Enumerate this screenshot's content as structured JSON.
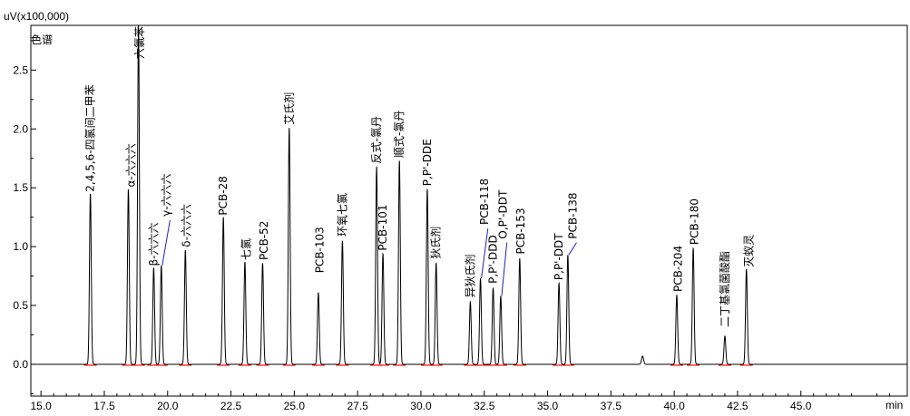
{
  "chart_data": {
    "type": "line",
    "y_unit": "uV(x100,000)",
    "x_unit": "min",
    "panel_label": "色谱",
    "xlim": [
      14.6,
      49.2
    ],
    "ylim": [
      -0.27,
      2.88
    ],
    "x_ticks": [
      15.0,
      17.5,
      20.0,
      22.5,
      25.0,
      27.5,
      30.0,
      32.5,
      35.0,
      37.5,
      40.0,
      42.5,
      45.0
    ],
    "x_tick_labels": [
      "15.0",
      "17.5",
      "20.0",
      "22.5",
      "25.0",
      "27.5",
      "30.0",
      "32.5",
      "35.0",
      "37.5",
      "40.0",
      "42.5",
      "45.0"
    ],
    "y_ticks": [
      0.0,
      0.5,
      1.0,
      1.5,
      2.0,
      2.5
    ],
    "y_tick_labels": [
      "0.0",
      "0.5",
      "1.0",
      "1.5",
      "2.0",
      "2.5"
    ],
    "line_color": "#000000",
    "baseline_color": "#ff0000",
    "leader_color": "#2020c0",
    "peaks": [
      {
        "x": 16.95,
        "h": 1.45,
        "w": 0.035,
        "label": "2,4,5,6-四氯间二甲苯",
        "lx": 16.95,
        "ly": 1.45
      },
      {
        "x": 18.45,
        "h": 1.49,
        "w": 0.035,
        "label": "α-六六六",
        "lx": 18.55,
        "ly": 1.49
      },
      {
        "x": 18.85,
        "h": 2.88,
        "w": 0.035,
        "label": "六氯苯",
        "lx": 18.9,
        "ly": 2.58
      },
      {
        "x": 19.45,
        "h": 0.82,
        "w": 0.035,
        "label": "β-六六六",
        "lx": 19.45,
        "ly": 0.82
      },
      {
        "x": 19.75,
        "h": 0.84,
        "w": 0.035,
        "label": "γ-六六六",
        "lx": 19.95,
        "ly": 1.24,
        "leader": true
      },
      {
        "x": 20.7,
        "h": 0.97,
        "w": 0.035,
        "label": "δ-六六六",
        "lx": 20.75,
        "ly": 0.98
      },
      {
        "x": 22.2,
        "h": 1.25,
        "w": 0.035,
        "label": "PCB-28",
        "lx": 22.2,
        "ly": 1.25
      },
      {
        "x": 23.05,
        "h": 0.87,
        "w": 0.035,
        "label": "七氯",
        "lx": 23.1,
        "ly": 0.87
      },
      {
        "x": 23.75,
        "h": 0.86,
        "w": 0.035,
        "label": "PCB-52",
        "lx": 23.8,
        "ly": 0.87
      },
      {
        "x": 24.8,
        "h": 2.01,
        "w": 0.035,
        "label": "艾氏剂",
        "lx": 24.8,
        "ly": 2.02
      },
      {
        "x": 25.95,
        "h": 0.61,
        "w": 0.035,
        "label": "PCB-103",
        "lx": 26.0,
        "ly": 0.76
      },
      {
        "x": 26.9,
        "h": 1.05,
        "w": 0.035,
        "label": "环氧七氯",
        "lx": 26.9,
        "ly": 1.07
      },
      {
        "x": 28.25,
        "h": 1.68,
        "w": 0.035,
        "label": "反式-氯丹",
        "lx": 28.25,
        "ly": 1.69
      },
      {
        "x": 28.5,
        "h": 0.94,
        "w": 0.035,
        "label": "PCB-101",
        "lx": 28.5,
        "ly": 0.95
      },
      {
        "x": 29.15,
        "h": 1.73,
        "w": 0.035,
        "label": "顺式-氯丹",
        "lx": 29.15,
        "ly": 1.74
      },
      {
        "x": 30.25,
        "h": 1.49,
        "w": 0.035,
        "label": "P,P'-DDE",
        "lx": 30.25,
        "ly": 1.5
      },
      {
        "x": 30.6,
        "h": 0.86,
        "w": 0.035,
        "label": "狄氏剂",
        "lx": 30.6,
        "ly": 0.88
      },
      {
        "x": 31.95,
        "h": 0.53,
        "w": 0.035,
        "label": "异狄氏剂",
        "lx": 31.95,
        "ly": 0.55
      },
      {
        "x": 32.35,
        "h": 0.73,
        "w": 0.035,
        "label": "PCB-118",
        "lx": 32.5,
        "ly": 1.17,
        "leader": true
      },
      {
        "x": 32.85,
        "h": 0.65,
        "w": 0.035,
        "label": "P,P'-DDD",
        "lx": 32.85,
        "ly": 0.67
      },
      {
        "x": 33.15,
        "h": 0.58,
        "w": 0.035,
        "label": "O,P'-DDT",
        "lx": 33.25,
        "ly": 1.05,
        "leader": true
      },
      {
        "x": 33.9,
        "h": 0.9,
        "w": 0.035,
        "label": "PCB-153",
        "lx": 33.95,
        "ly": 0.92
      },
      {
        "x": 35.45,
        "h": 0.69,
        "w": 0.035,
        "label": "P,P'-DDT",
        "lx": 35.45,
        "ly": 0.7
      },
      {
        "x": 35.8,
        "h": 0.93,
        "w": 0.035,
        "label": "PCB-138",
        "lx": 36.0,
        "ly": 1.05,
        "leader": true
      },
      {
        "x": 38.75,
        "h": 0.07,
        "w": 0.04,
        "label": ""
      },
      {
        "x": 40.1,
        "h": 0.59,
        "w": 0.035,
        "label": "PCB-204",
        "lx": 40.15,
        "ly": 0.6
      },
      {
        "x": 40.75,
        "h": 0.99,
        "w": 0.035,
        "label": "PCB-180",
        "lx": 40.8,
        "ly": 1.0
      },
      {
        "x": 42.0,
        "h": 0.24,
        "w": 0.035,
        "label": "二丁基氯菌酸酯",
        "lx": 42.0,
        "ly": 0.3
      },
      {
        "x": 42.85,
        "h": 0.81,
        "w": 0.035,
        "label": "灭蚁灵",
        "lx": 42.95,
        "ly": 0.81
      }
    ]
  }
}
